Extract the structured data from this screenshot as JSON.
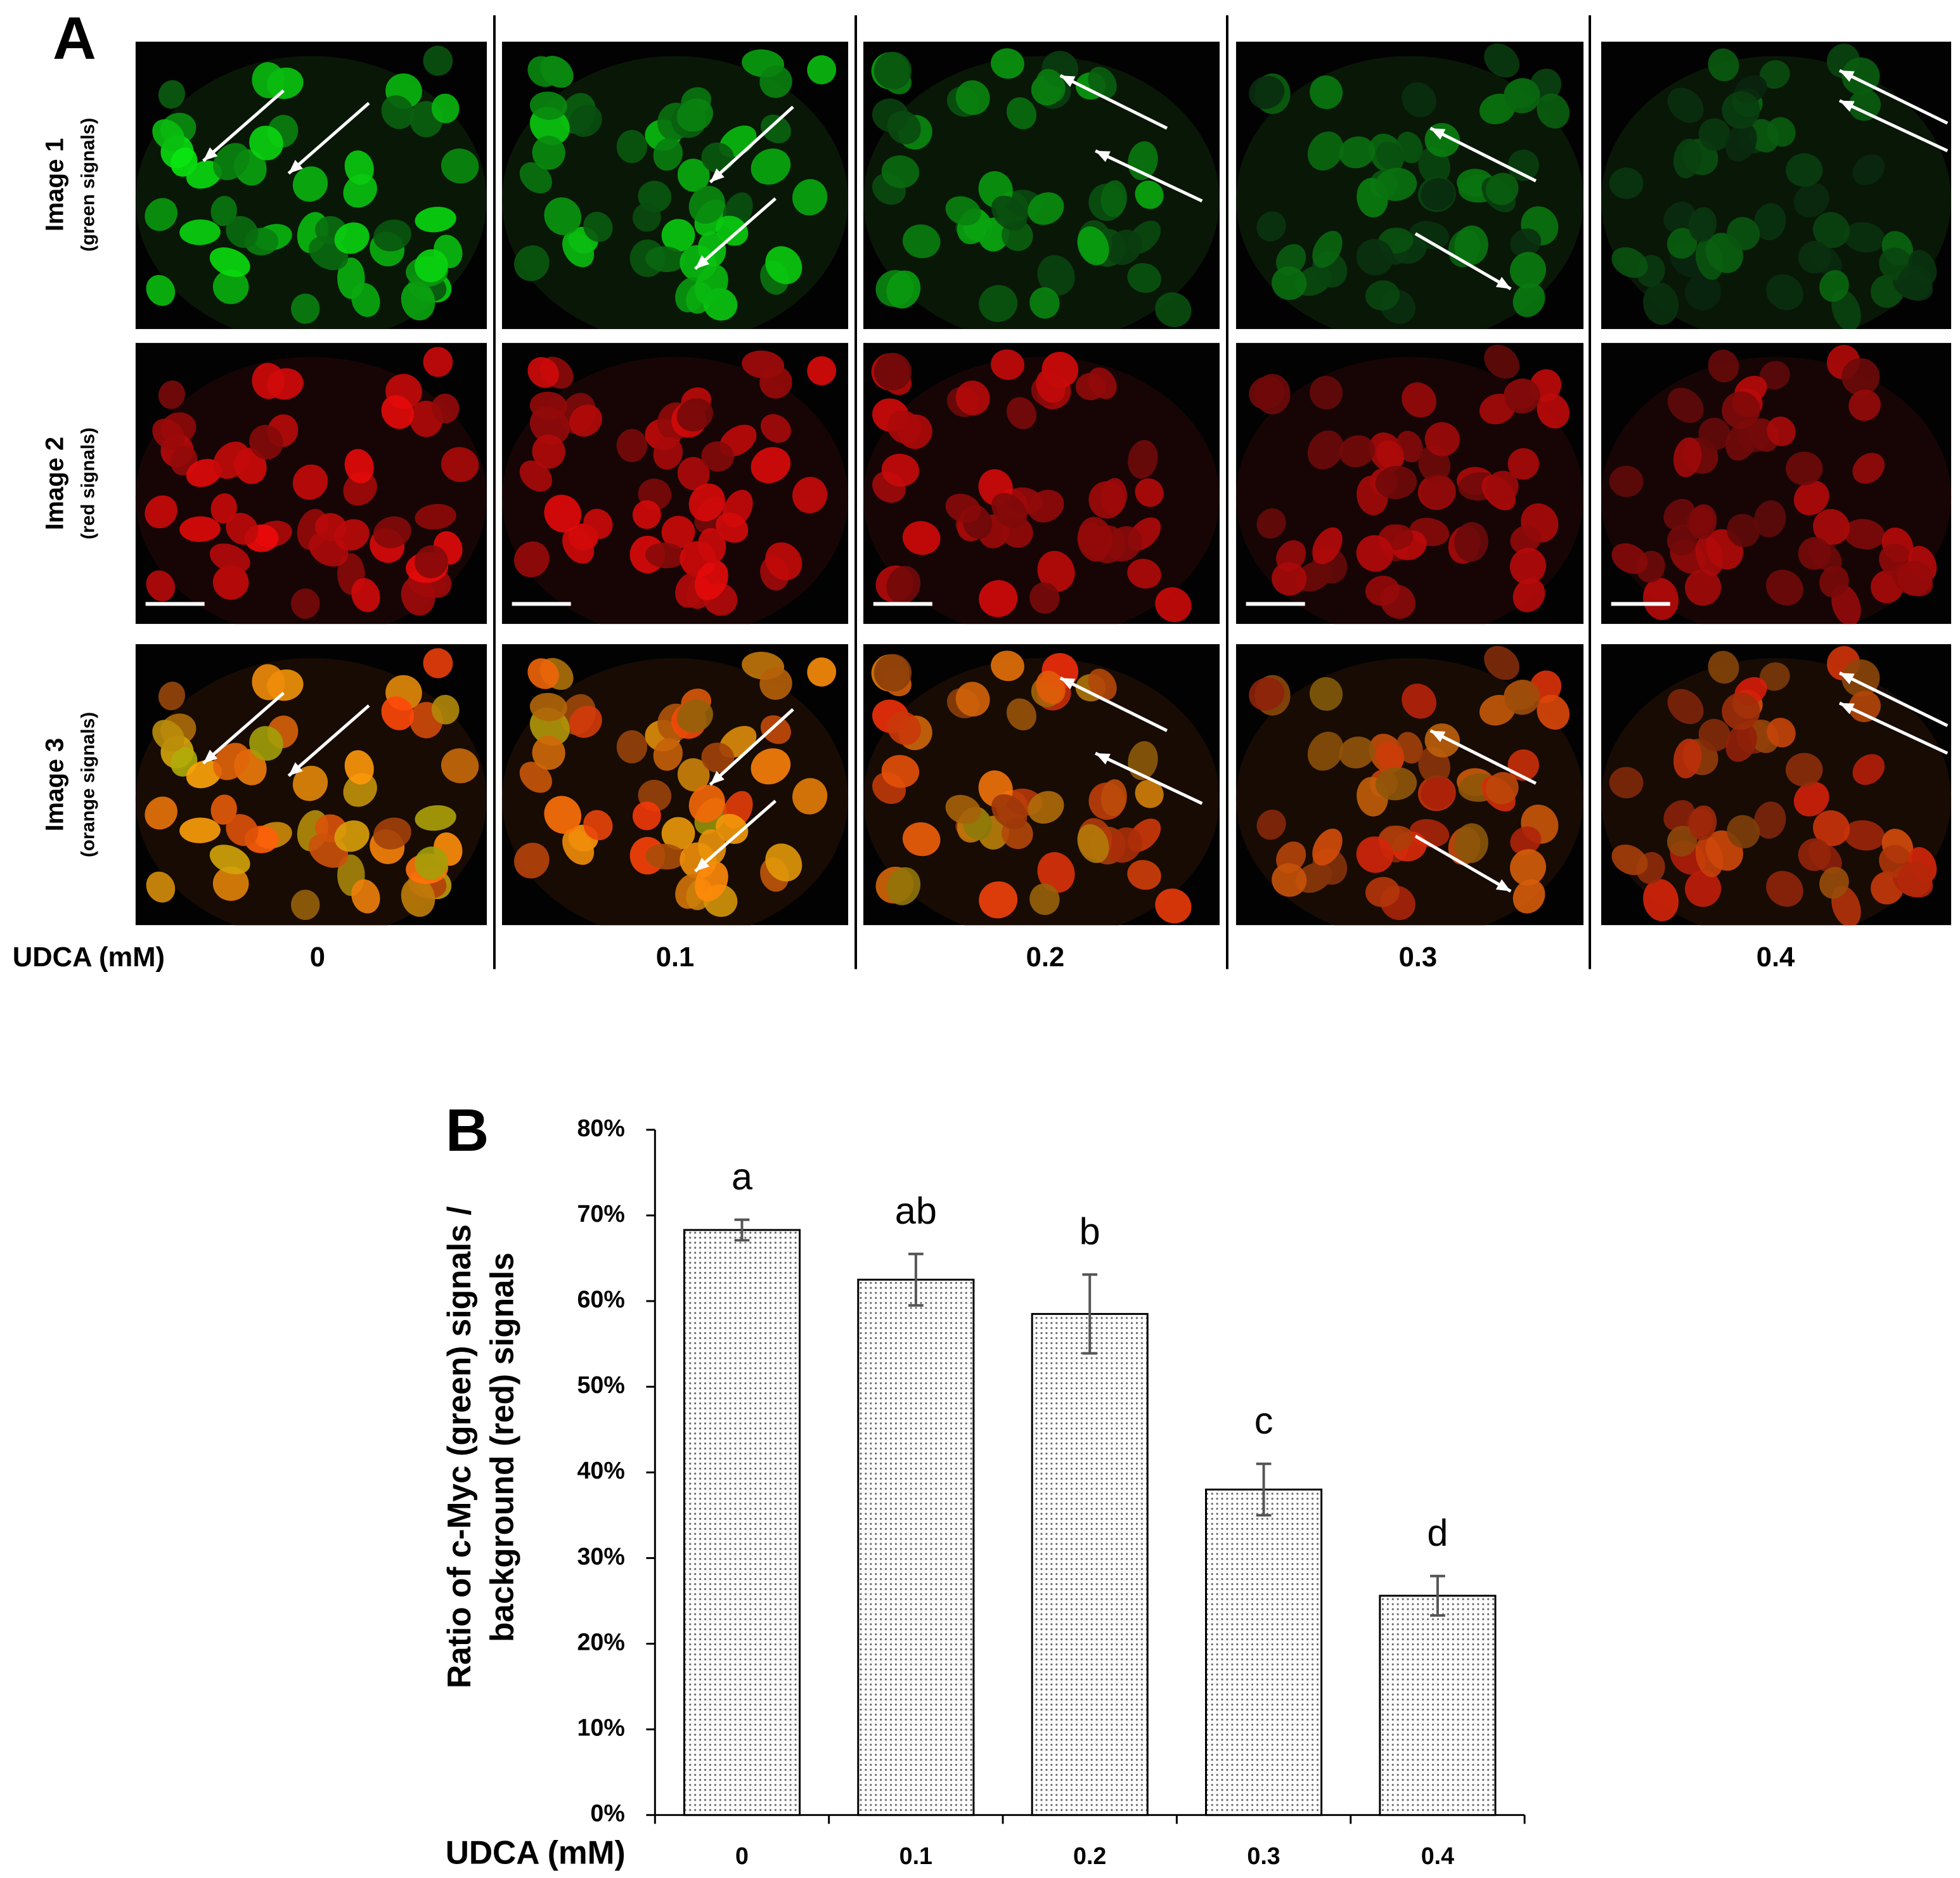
{
  "panel_a": {
    "label": "A",
    "rows": [
      {
        "title": "Image  1",
        "subtitle": "(green signals)"
      },
      {
        "title": "Image 2",
        "subtitle": "(red signals)"
      },
      {
        "title": "Image  3",
        "subtitle": "(orange signals)"
      }
    ],
    "axis_label": "UDCA (mM)",
    "columns": [
      "0",
      "0.1",
      "0.2",
      "0.3",
      "0.4"
    ]
  },
  "chart_data": {
    "type": "bar",
    "panel_label": "B",
    "ylabel": [
      "Ratio of c-Myc (green) signals /",
      "background (red) signals"
    ],
    "xlabel": "UDCA (mM)",
    "categories": [
      "0",
      "0.1",
      "0.2",
      "0.3",
      "0.4"
    ],
    "values": [
      68.3,
      62.5,
      58.5,
      38,
      25.6
    ],
    "errors": [
      1.2,
      3,
      4.6,
      3,
      2.3
    ],
    "annotations": [
      "a",
      "ab",
      "b",
      "c",
      "d"
    ],
    "color": "#d0d0d0",
    "ylim": [
      0,
      80
    ],
    "yticks": [
      {
        "value": 0,
        "label": "0%"
      },
      {
        "value": 10,
        "label": "10%"
      },
      {
        "value": 20,
        "label": "20%"
      },
      {
        "value": 30,
        "label": "30%"
      },
      {
        "value": 40,
        "label": "40%"
      },
      {
        "value": 50,
        "label": "50%"
      },
      {
        "value": 60,
        "label": "60%"
      },
      {
        "value": 70,
        "label": "70%"
      },
      {
        "value": 80,
        "label": "80%"
      }
    ]
  }
}
